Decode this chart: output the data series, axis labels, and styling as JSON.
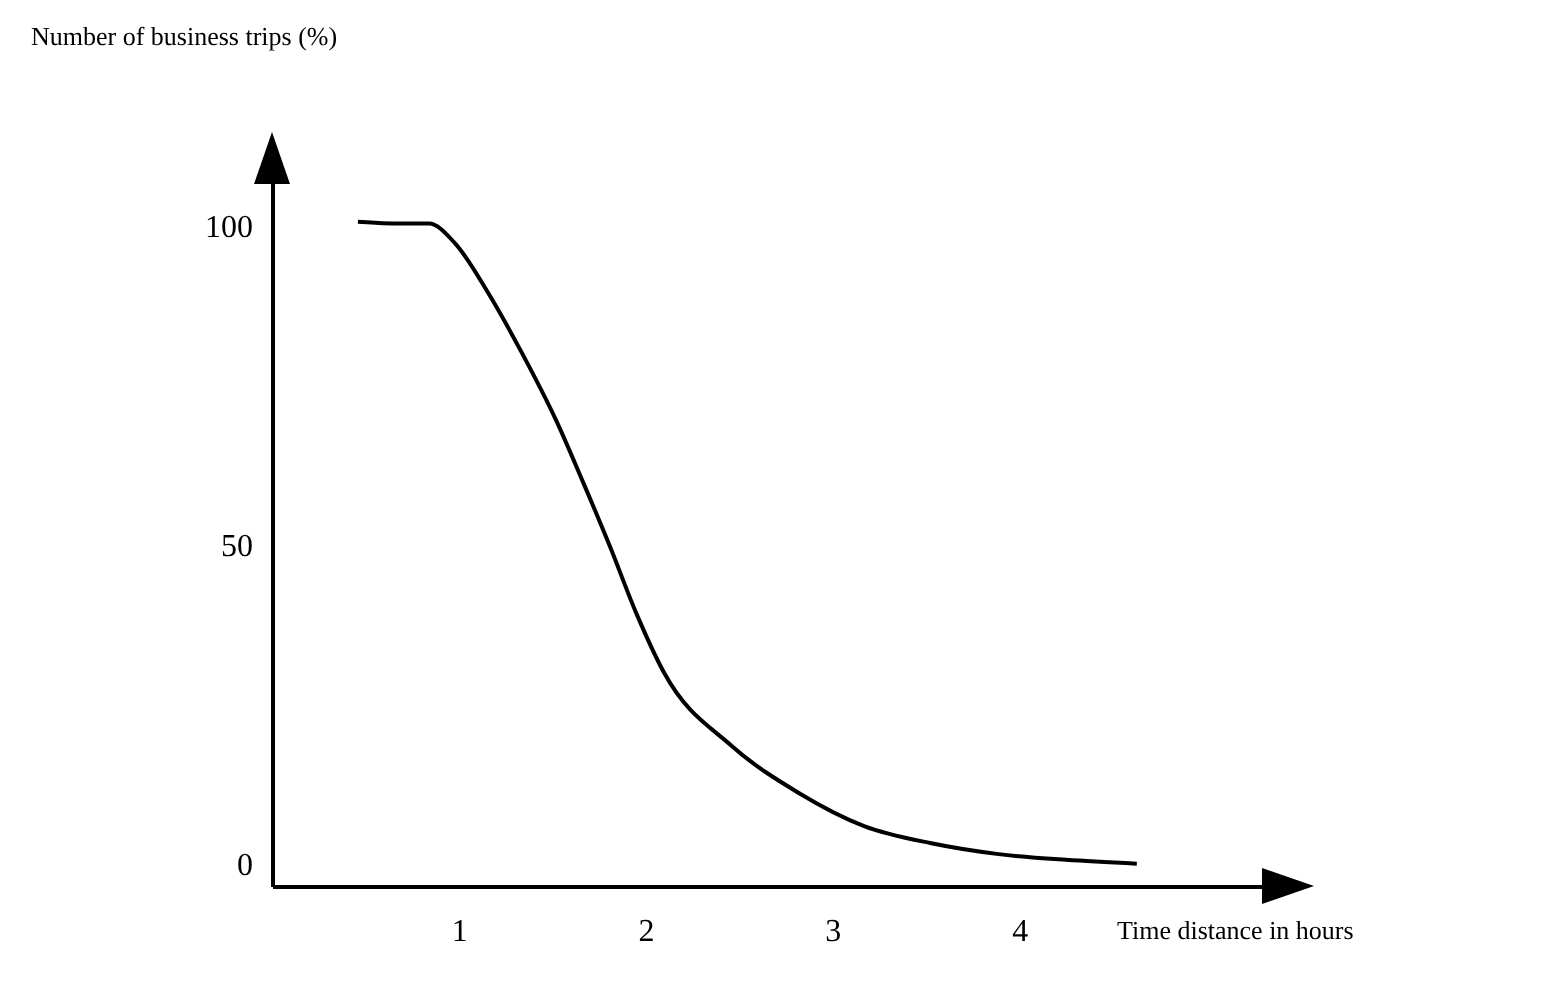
{
  "chart_data": {
    "type": "line",
    "xlabel": "Time distance in hours",
    "ylabel": "Number of business trips (%)",
    "xlim": [
      0,
      5.45
    ],
    "ylim": [
      -3.5,
      111
    ],
    "xticks": [
      1,
      2,
      3,
      4
    ],
    "yticks": [
      0,
      50,
      100
    ],
    "grid": false,
    "marker": "none",
    "line_style": "solid",
    "series": [
      {
        "color": "#000000",
        "x": [
          0.46,
          0.69,
          0.84,
          0.98,
          1.16,
          1.34,
          1.52,
          1.66,
          1.81,
          1.95,
          2.1,
          2.46,
          2.82,
          3.17,
          3.53,
          3.89,
          4.25,
          4.63
        ],
        "values": [
          100.7,
          100.4,
          100.4,
          97.3,
          89.4,
          80,
          69.6,
          60.2,
          49.7,
          39.3,
          29.9,
          18.5,
          11.1,
          5.9,
          3.2,
          1.5,
          0.6,
          0
        ]
      }
    ]
  }
}
